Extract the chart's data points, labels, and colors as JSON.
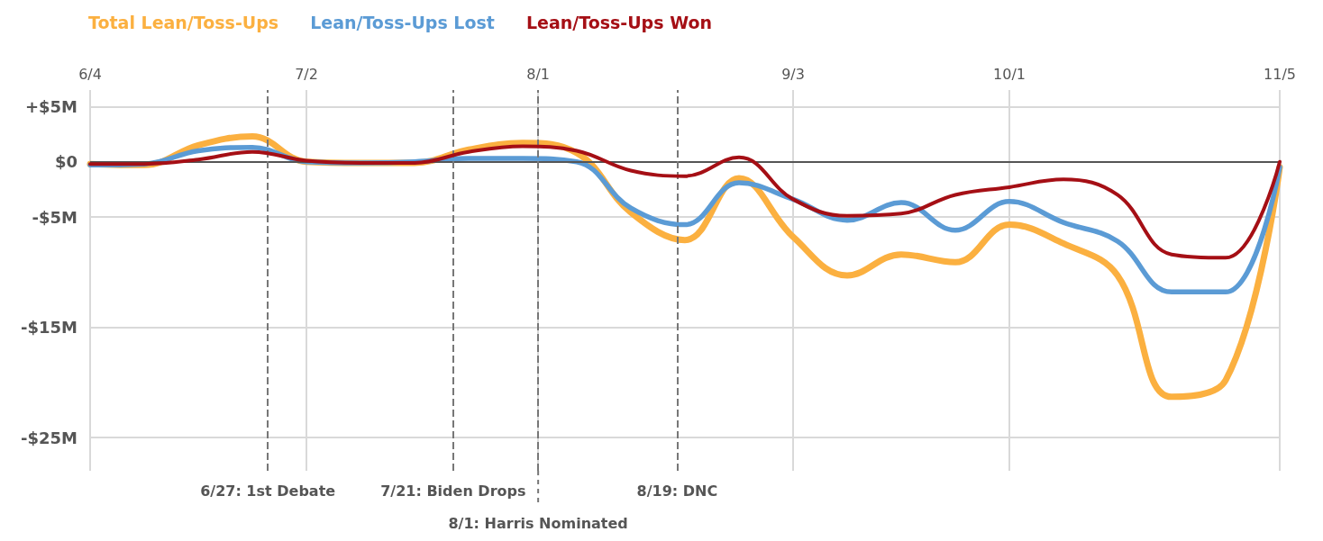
{
  "chart_data": {
    "type": "line",
    "x": [
      "--06-04",
      "--06-11",
      "--06-18",
      "--06-25",
      "--07-02",
      "--07-09",
      "--07-16",
      "--07-23",
      "--07-30",
      "--08-06",
      "--08-13",
      "--08-20",
      "--08-27",
      "--09-03",
      "--09-10",
      "--09-17",
      "--09-24",
      "--10-01",
      "--10-08",
      "--10-15",
      "--10-22",
      "--10-29",
      "--11-05"
    ],
    "series": [
      {
        "name": "Total Lean/Toss-Ups",
        "color": "#fbb040",
        "values": [
          -0.2,
          -0.3,
          1.5,
          2.3,
          0,
          -0.1,
          -0.1,
          1.1,
          1.7,
          0.8,
          -4.6,
          -7.1,
          -1.5,
          -6.8,
          -10.3,
          -8.4,
          -9.1,
          -5.7,
          -7.4,
          -10.3,
          -21.3,
          -19.8,
          -0.5
        ]
      },
      {
        "name": "Lean/Toss-Ups Lost",
        "color": "#5b9bd5",
        "values": [
          -0.3,
          -0.2,
          1.0,
          1.3,
          0,
          -0.1,
          0,
          0.3,
          0.3,
          0,
          -4.2,
          -5.7,
          -1.9,
          -3.4,
          -5.3,
          -3.7,
          -6.2,
          -3.6,
          -5.5,
          -7.2,
          -11.8,
          -11.8,
          -0.5
        ]
      },
      {
        "name": "Lean/Toss-Ups Won",
        "color": "#a50f15",
        "values": [
          -0.2,
          -0.2,
          0.2,
          0.9,
          0.1,
          -0.1,
          -0.1,
          0.9,
          1.4,
          1.0,
          -0.8,
          -1.3,
          0.4,
          -3.4,
          -4.9,
          -4.7,
          -3.0,
          -2.3,
          -1.6,
          -3.0,
          -8.4,
          -8.7,
          0
        ]
      }
    ],
    "xlim": [
      "--06-04",
      "--11-05"
    ],
    "xticks": [
      {
        "value": "--06-04",
        "label": "6/4"
      },
      {
        "value": "--07-02",
        "label": "7/2"
      },
      {
        "value": "--08-01",
        "label": "8/1"
      },
      {
        "value": "--09-03",
        "label": "9/3"
      },
      {
        "value": "--10-01",
        "label": "10/1"
      },
      {
        "value": "--11-05",
        "label": "11/5"
      }
    ],
    "ylim": [
      -28,
      6.5
    ],
    "yticks": [
      {
        "value": 5,
        "label": "+$5M"
      },
      {
        "value": 0,
        "label": "$0"
      },
      {
        "value": -5,
        "label": "-$5M"
      },
      {
        "value": -15,
        "label": "-$15M"
      },
      {
        "value": -25,
        "label": "-$25M"
      }
    ],
    "ref_lines": [
      {
        "axis": "y",
        "value": 0,
        "color": "#555555",
        "line_style": "solid"
      },
      {
        "axis": "x",
        "value": "--06-27",
        "label": "6/27: 1st Debate",
        "color": "#777777",
        "line_style": "dashed"
      },
      {
        "axis": "x",
        "value": "--07-21",
        "label": "7/21: Biden Drops",
        "color": "#777777",
        "line_style": "dashed"
      },
      {
        "axis": "x",
        "value": "--08-01",
        "label": "8/1: Harris Nominated",
        "color": "#777777",
        "line_style": "dashed"
      },
      {
        "axis": "x",
        "value": "--08-19",
        "label": "8/19: DNC",
        "color": "#777777",
        "line_style": "dashed"
      }
    ],
    "grid": true,
    "legend": "top left",
    "marker": "none",
    "line_style": "solid"
  }
}
